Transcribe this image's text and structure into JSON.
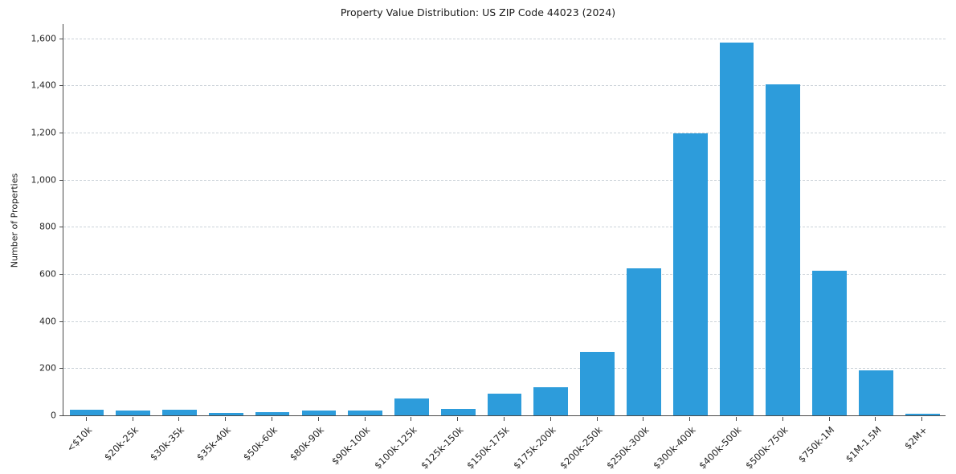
{
  "chart_data": {
    "type": "bar",
    "title": "Property Value Distribution: US ZIP Code 44023 (2024)",
    "xlabel": "",
    "ylabel": "Number of Properties",
    "categories": [
      "<$10k",
      "$20k-25k",
      "$30k-35k",
      "$35k-40k",
      "$50k-60k",
      "$80k-90k",
      "$90k-100k",
      "$100k-125k",
      "$125k-150k",
      "$150k-175k",
      "$175k-200k",
      "$200k-250k",
      "$250k-300k",
      "$300k-400k",
      "$400k-500k",
      "$500k-750k",
      "$750k-1M",
      "$1M-1.5M",
      "$2M+"
    ],
    "values": [
      25,
      22,
      25,
      10,
      15,
      20,
      22,
      70,
      28,
      92,
      120,
      270,
      625,
      1195,
      1580,
      1405,
      615,
      190,
      8
    ],
    "ylim": [
      0,
      1660
    ],
    "ytick_step": 200,
    "ytick_max": 1600,
    "grid": "dashed-horizontal",
    "legend": "none",
    "bar_color": "#2D9CDB"
  }
}
